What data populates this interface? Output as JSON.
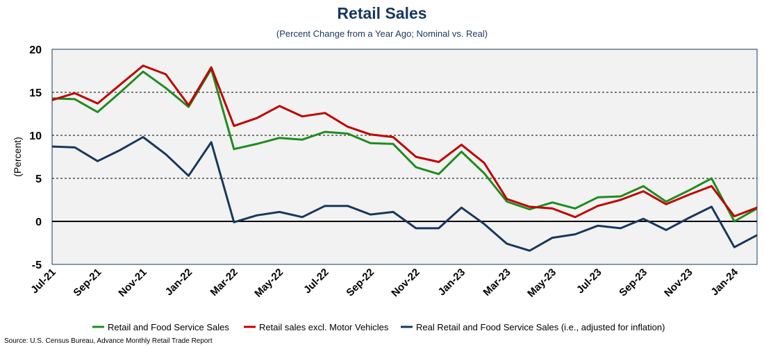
{
  "header": {
    "title": "Retail Sales",
    "subtitle": "(Percent Change from a Year Ago; Nominal vs. Real)"
  },
  "footer": {
    "source": "Source: U.S. Census Bureau, Advance Monthly Retail Trade Report"
  },
  "chart_data": {
    "type": "line",
    "title": "Retail Sales",
    "subtitle": "(Percent Change from a Year Ago; Nominal vs. Real)",
    "ylabel": "(Percent)",
    "xlabel": "",
    "ylim": [
      -5,
      20
    ],
    "yticks": [
      -5,
      0,
      5,
      10,
      15,
      20
    ],
    "grid": "horizontal dashed",
    "legend_position": "bottom",
    "x": [
      "Jul-21",
      "Aug-21",
      "Sep-21",
      "Oct-21",
      "Nov-21",
      "Dec-21",
      "Jan-22",
      "Feb-22",
      "Mar-22",
      "Apr-22",
      "May-22",
      "Jun-22",
      "Jul-22",
      "Aug-22",
      "Sep-22",
      "Oct-22",
      "Nov-22",
      "Dec-22",
      "Jan-23",
      "Feb-23",
      "Mar-23",
      "Apr-23",
      "May-23",
      "Jun-23",
      "Jul-23",
      "Aug-23",
      "Sep-23",
      "Oct-23",
      "Nov-23",
      "Dec-23",
      "Jan-24",
      "Feb-24"
    ],
    "x_tick_labels": [
      "Jul-21",
      "Sep-21",
      "Nov-21",
      "Jan-22",
      "Mar-22",
      "May-22",
      "Jul-22",
      "Sep-22",
      "Nov-22",
      "Jan-23",
      "Mar-23",
      "May-23",
      "Jul-23",
      "Sep-23",
      "Nov-23",
      "Jan-24"
    ],
    "series": [
      {
        "name": "Retail and Food Service Sales",
        "color": "#1e8c1e",
        "values": [
          14.3,
          14.2,
          12.7,
          15.0,
          17.4,
          15.5,
          13.3,
          17.7,
          8.4,
          9.0,
          9.7,
          9.5,
          10.4,
          10.2,
          9.1,
          9.0,
          6.3,
          5.5,
          8.1,
          5.6,
          2.3,
          1.4,
          2.2,
          1.5,
          2.8,
          2.9,
          4.1,
          2.3,
          3.6,
          5.0,
          0.0,
          1.5
        ]
      },
      {
        "name": "Retail sales excl. Motor Vehicles",
        "color": "#c00000",
        "values": [
          14.1,
          14.9,
          13.7,
          15.9,
          18.1,
          17.1,
          13.5,
          17.9,
          11.1,
          12.0,
          13.4,
          12.2,
          12.6,
          11.0,
          10.1,
          9.8,
          7.5,
          6.9,
          8.9,
          6.8,
          2.6,
          1.7,
          1.5,
          0.5,
          1.8,
          2.5,
          3.5,
          2.0,
          3.1,
          4.1,
          0.6,
          1.6
        ]
      },
      {
        "name": "Real Retail and Food Service Sales (i.e., adjusted for inflation)",
        "color": "#17375e",
        "values": [
          8.7,
          8.6,
          7.0,
          8.3,
          9.8,
          7.8,
          5.3,
          9.2,
          -0.1,
          0.7,
          1.1,
          0.5,
          1.8,
          1.8,
          0.8,
          1.1,
          -0.8,
          -0.8,
          1.6,
          -0.3,
          -2.6,
          -3.4,
          -1.9,
          -1.5,
          -0.5,
          -0.8,
          0.3,
          -1.0,
          0.4,
          1.7,
          -3.0,
          -1.6
        ]
      }
    ]
  }
}
